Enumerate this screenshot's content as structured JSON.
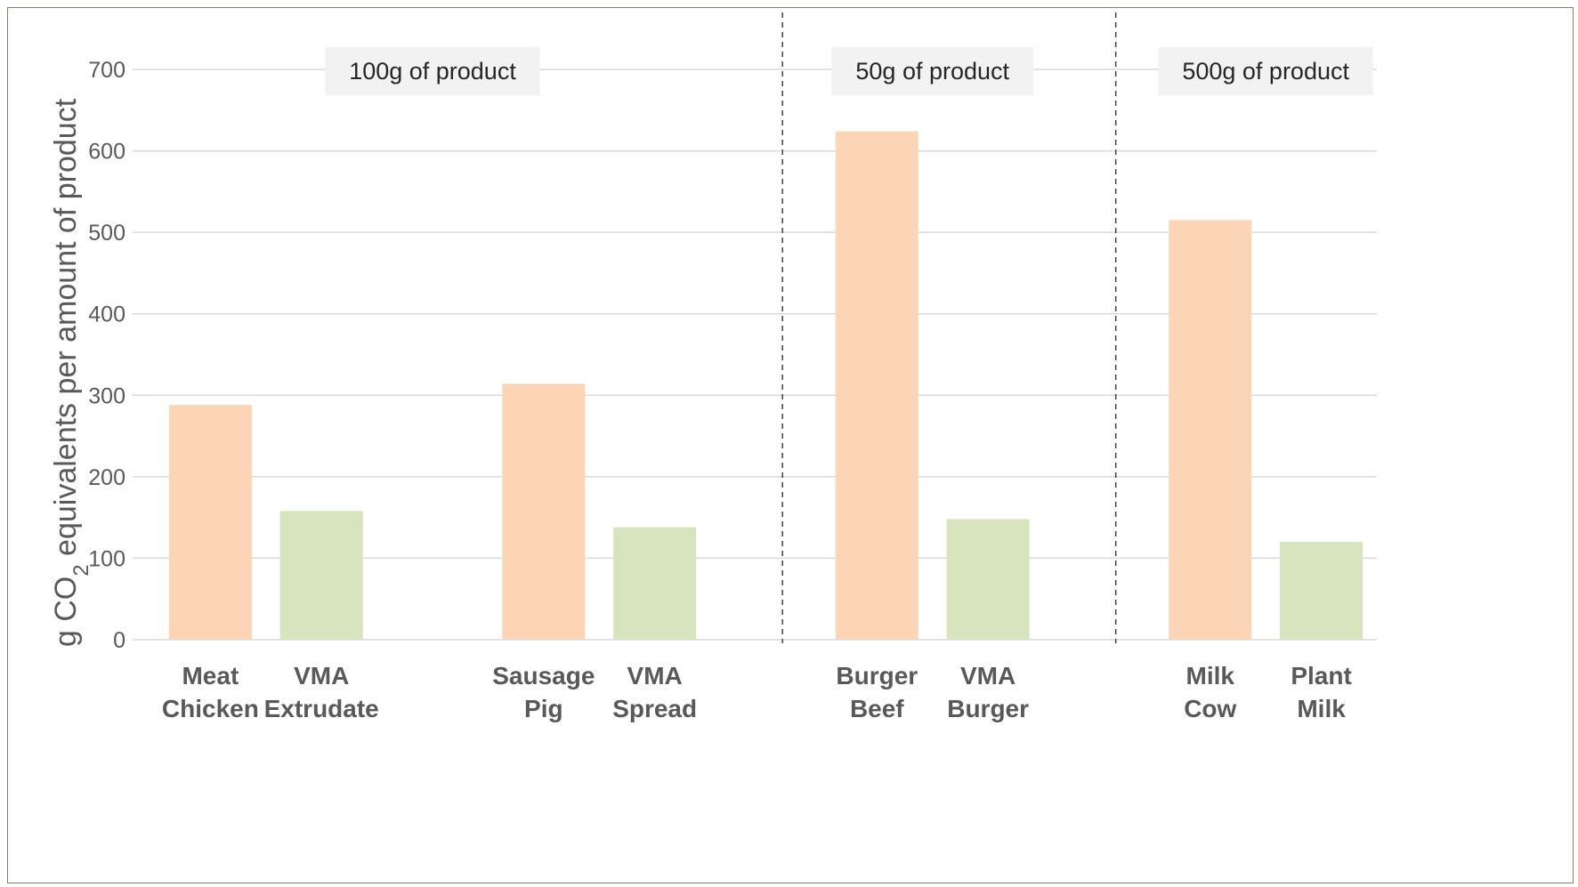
{
  "chart_data": {
    "type": "bar",
    "ylabel": "g CO₂ equivalents per amount of product",
    "ylabel_parts": {
      "pre": "g CO",
      "sub": "2",
      "post": " equivalents per amount of product"
    },
    "ylim": [
      0,
      700
    ],
    "yticks": [
      0,
      100,
      200,
      300,
      400,
      500,
      600,
      700
    ],
    "grid": true,
    "groups": [
      {
        "label": "100g of product",
        "categories": [
          0,
          1,
          2,
          3
        ]
      },
      {
        "label": "50g of product",
        "categories": [
          4,
          5
        ]
      },
      {
        "label": "500g of product",
        "categories": [
          6,
          7
        ]
      }
    ],
    "categories": [
      {
        "line1": "Meat",
        "line2": "Chicken"
      },
      {
        "line1": "VMA",
        "line2": "Extrudate"
      },
      {
        "line1": "Sausage",
        "line2": "Pig"
      },
      {
        "line1": "VMA",
        "line2": "Spread"
      },
      {
        "line1": "Burger",
        "line2": "Beef"
      },
      {
        "line1": "VMA",
        "line2": "Burger"
      },
      {
        "line1": "Milk",
        "line2": "Cow"
      },
      {
        "line1": "Plant",
        "line2": "Milk"
      }
    ],
    "values": [
      288,
      158,
      314,
      138,
      624,
      148,
      515,
      120
    ],
    "bar_kinds": [
      "animal",
      "plant",
      "animal",
      "plant",
      "animal",
      "plant",
      "animal",
      "plant"
    ],
    "colors": {
      "animal": "#fbd5b5",
      "plant": "#d7e4bd",
      "grid": "#d9d9d9",
      "divider": "#404040",
      "label_box": "#f2f2f2"
    }
  }
}
